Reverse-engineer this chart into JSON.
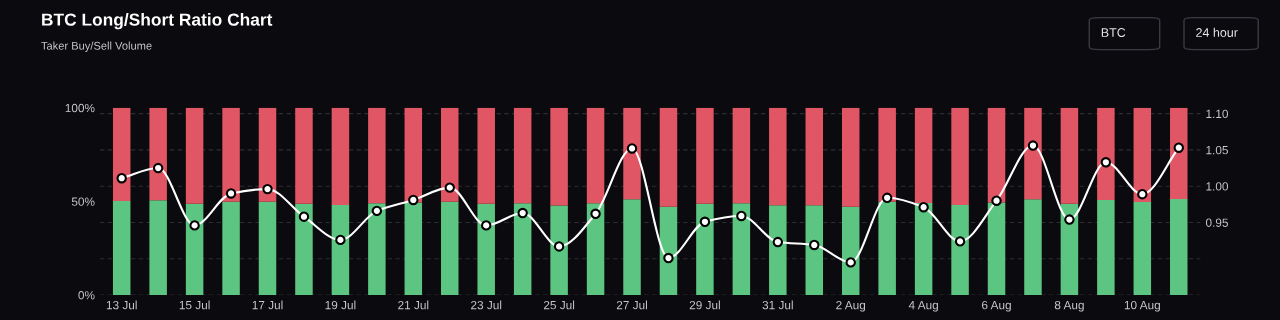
{
  "chart_data": {
    "type": "bar",
    "title": "BTC Long/Short Ratio Chart",
    "subtitle": "Taker Buy/Sell Volume",
    "annotations": [
      "BTC",
      "24 hour"
    ],
    "categories": [
      "13 Jul",
      null,
      "15 Jul",
      null,
      "17 Jul",
      null,
      "19 Jul",
      null,
      "21 Jul",
      null,
      "23 Jul",
      null,
      "25 Jul",
      null,
      "27 Jul",
      null,
      "29 Jul",
      null,
      "31 Jul",
      null,
      "2 Aug",
      null,
      "4 Aug",
      null,
      "6 Aug",
      null,
      "8 Aug",
      null,
      "10 Aug",
      null
    ],
    "stacked": true,
    "series": [
      {
        "color": "#5cc581",
        "values": [
          50.3,
          50.6,
          48.8,
          49.9,
          49.9,
          48.8,
          48.1,
          49.0,
          49.5,
          49.9,
          48.8,
          49.0,
          47.8,
          49.0,
          51.2,
          47.1,
          48.7,
          49.0,
          48.0,
          48.0,
          47.1,
          49.9,
          49.2,
          48.1,
          49.4,
          51.2,
          48.8,
          50.8,
          49.7,
          51.3
        ]
      },
      {
        "color": "#e15664",
        "values": [
          49.7,
          49.4,
          51.2,
          50.1,
          50.1,
          51.2,
          51.9,
          51.0,
          50.5,
          50.1,
          51.2,
          51.0,
          52.2,
          51.0,
          48.8,
          52.9,
          51.3,
          51.0,
          52.0,
          52.0,
          52.9,
          50.1,
          50.8,
          51.9,
          50.6,
          48.8,
          51.2,
          49.2,
          50.3,
          48.7
        ]
      },
      {
        "type": "line",
        "axis": "y2",
        "color": "#ffffff",
        "marker": "circle",
        "values": [
          1.011,
          1.025,
          0.946,
          0.99,
          0.996,
          0.958,
          0.926,
          0.966,
          0.981,
          0.998,
          0.946,
          0.963,
          0.917,
          0.962,
          1.052,
          0.901,
          0.951,
          0.959,
          0.923,
          0.919,
          0.895,
          0.984,
          0.971,
          0.924,
          0.98,
          1.056,
          0.954,
          1.033,
          0.989,
          1.053
        ]
      }
    ],
    "ylim": [
      0,
      100
    ],
    "yticks": [
      {
        "value": 0,
        "label": "0%"
      },
      {
        "value": 50,
        "label": "50%"
      },
      {
        "value": 100,
        "label": "100%"
      }
    ],
    "y2lim": [
      0.85,
      1.108
    ],
    "y2ticks": [
      {
        "value": 0.85,
        "label": null
      },
      {
        "value": 0.9,
        "label": null
      },
      0.95,
      {
        "value": 1.0,
        "label": "1.00"
      },
      1.05,
      {
        "value": 1.1,
        "label": "1.10"
      }
    ],
    "grid": "y2",
    "legend": false
  }
}
